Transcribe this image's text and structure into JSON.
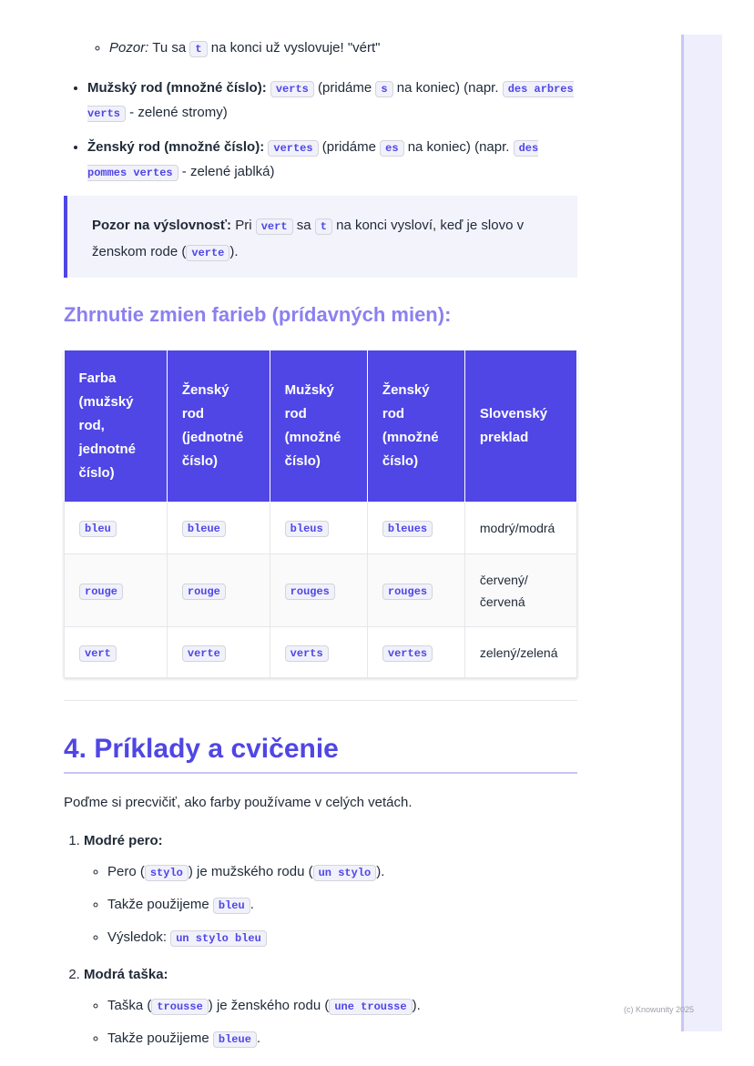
{
  "intro_items": [
    [
      {
        "italic": "Pozor:"
      },
      {
        "text": " Tu sa "
      },
      {
        "code": "t"
      },
      {
        "text": " na konci už vyslovuje! \"vért\""
      }
    ],
    [
      {
        "bold": "Mužský rod (množné číslo):"
      },
      {
        "text": " "
      },
      {
        "code": "verts"
      },
      {
        "text": " (pridáme "
      },
      {
        "code": "s"
      },
      {
        "text": " na koniec) (napr. "
      },
      {
        "code": "des arbres verts"
      },
      {
        "text": " - zelené stromy)"
      }
    ],
    [
      {
        "bold": "Ženský rod (množné číslo):"
      },
      {
        "text": " "
      },
      {
        "code": "vertes"
      },
      {
        "text": " (pridáme "
      },
      {
        "code": "es"
      },
      {
        "text": " na koniec) (napr. "
      },
      {
        "code": "des pommes vertes"
      },
      {
        "text": " - zelené jablká)"
      }
    ]
  ],
  "note": [
    {
      "bold": "Pozor na výslovnosť:"
    },
    {
      "text": " Pri "
    },
    {
      "code": "vert"
    },
    {
      "text": " sa "
    },
    {
      "code": "t"
    },
    {
      "text": " na konci vysloví, keď je slovo v ženskom rode ("
    },
    {
      "code": "verte"
    },
    {
      "text": ")."
    }
  ],
  "summary_heading": "Zhrnutie zmien farieb (prídavných mien):",
  "table": {
    "header": [
      "Farba (mužský rod, jednotné číslo)",
      "Ženský rod (jednotné číslo)",
      "Mužský rod (množné číslo)",
      "Ženský rod (množné číslo)",
      "Slovenský preklad"
    ],
    "rows": [
      [
        "bleu",
        "bleue",
        "bleus",
        "bleues",
        "modrý/modrá"
      ],
      [
        "rouge",
        "rouge",
        "rouges",
        "rouges",
        "červený/ červená"
      ],
      [
        "vert",
        "verte",
        "verts",
        "vertes",
        "zelený/zelená"
      ]
    ]
  },
  "section_heading": "4. Príklady a cvičenie",
  "section_intro": "Poďme si precvičiť, ako farby používame v celých vetách.",
  "examples": [
    {
      "title": "Modré pero:",
      "items": [
        [
          {
            "text": "Pero ("
          },
          {
            "code": "stylo"
          },
          {
            "text": ") je mužského rodu ("
          },
          {
            "code": "un stylo"
          },
          {
            "text": ")."
          }
        ],
        [
          {
            "text": "Takže použijeme "
          },
          {
            "code": "bleu"
          },
          {
            "text": "."
          }
        ],
        [
          {
            "text": "Výsledok: "
          },
          {
            "code": "un stylo bleu"
          }
        ]
      ]
    },
    {
      "title": "Modrá taška:",
      "items": [
        [
          {
            "text": "Taška ("
          },
          {
            "code": "trousse"
          },
          {
            "text": ") je ženského rodu ("
          },
          {
            "code": "une trousse"
          },
          {
            "text": ")."
          }
        ],
        [
          {
            "text": "Takže použijeme "
          },
          {
            "code": "bleue"
          },
          {
            "text": "."
          }
        ]
      ]
    }
  ],
  "footer": "(c) Knowunity 2025"
}
